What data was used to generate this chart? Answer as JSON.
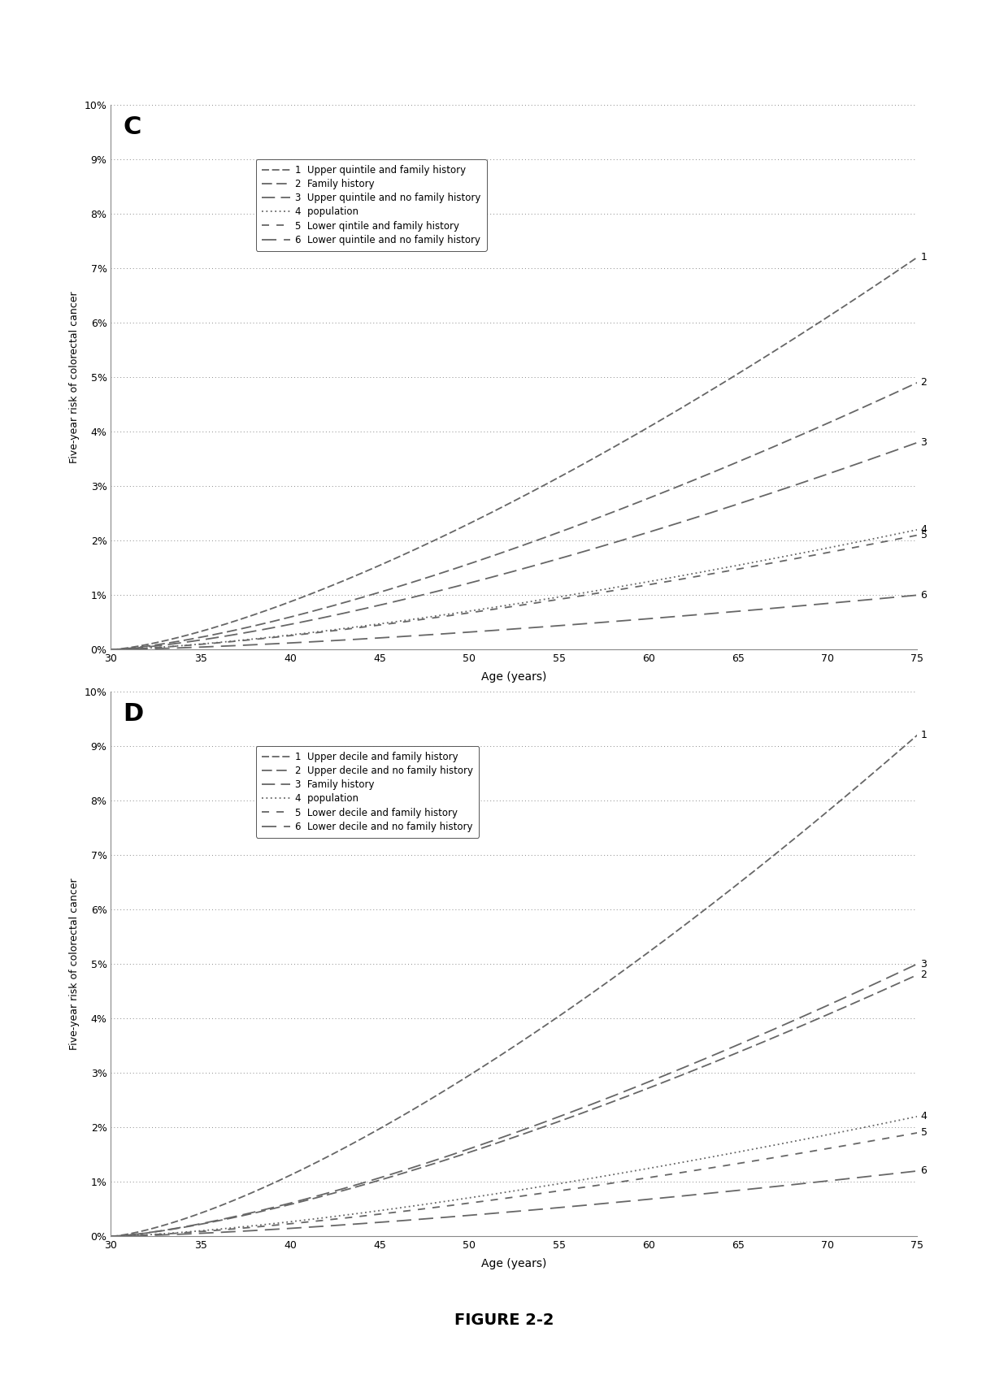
{
  "panel_C": {
    "label": "C",
    "ylabel": "Five-year risk of colorectal cancer",
    "xlabel": "Age (years)",
    "xlim": [
      30,
      75
    ],
    "ylim": [
      0,
      0.1
    ],
    "yticks": [
      0,
      0.01,
      0.02,
      0.03,
      0.04,
      0.05,
      0.06,
      0.07,
      0.08,
      0.09,
      0.1
    ],
    "xticks": [
      30,
      35,
      40,
      45,
      50,
      55,
      60,
      65,
      70,
      75
    ],
    "legend_entries": [
      {
        "num": "1",
        "style": "s1",
        "label": "Upper quintile and family history"
      },
      {
        "num": "2",
        "style": "s2",
        "label": "Family history"
      },
      {
        "num": "3",
        "style": "s3",
        "label": "Upper quintile and no family history"
      },
      {
        "num": "4",
        "style": "s4",
        "label": "population"
      },
      {
        "num": "5",
        "style": "s5",
        "label": "Lower qintile and family history"
      },
      {
        "num": "6",
        "style": "s6",
        "label": "Lower quintile and no family history"
      }
    ],
    "lines": [
      {
        "id": 1,
        "y_at_75": 0.072,
        "exponent": 1.4
      },
      {
        "id": 2,
        "y_at_75": 0.049,
        "exponent": 1.4
      },
      {
        "id": 3,
        "y_at_75": 0.038,
        "exponent": 1.4
      },
      {
        "id": 4,
        "y_at_75": 0.022,
        "exponent": 1.4
      },
      {
        "id": 5,
        "y_at_75": 0.021,
        "exponent": 1.4
      },
      {
        "id": 6,
        "y_at_75": 0.01,
        "exponent": 1.4
      }
    ]
  },
  "panel_D": {
    "label": "D",
    "ylabel": "Five-year risk of colorectal cancer",
    "xlabel": "Age (years)",
    "xlim": [
      30,
      75
    ],
    "ylim": [
      0,
      0.1
    ],
    "yticks": [
      0,
      0.01,
      0.02,
      0.03,
      0.04,
      0.05,
      0.06,
      0.07,
      0.08,
      0.09,
      0.1
    ],
    "xticks": [
      30,
      35,
      40,
      45,
      50,
      55,
      60,
      65,
      70,
      75
    ],
    "legend_entries": [
      {
        "num": "1",
        "style": "s1",
        "label": "Upper decile and family history"
      },
      {
        "num": "2",
        "style": "s2",
        "label": "Upper decile and no family history"
      },
      {
        "num": "3",
        "style": "s3",
        "label": "Family history"
      },
      {
        "num": "4",
        "style": "s4",
        "label": "population"
      },
      {
        "num": "5",
        "style": "s5",
        "label": "Lower decile and family history"
      },
      {
        "num": "6",
        "style": "s6",
        "label": "Lower decile and no family history"
      }
    ],
    "lines": [
      {
        "id": 1,
        "y_at_75": 0.092,
        "exponent": 1.4
      },
      {
        "id": 2,
        "y_at_75": 0.048,
        "exponent": 1.4
      },
      {
        "id": 3,
        "y_at_75": 0.05,
        "exponent": 1.4
      },
      {
        "id": 4,
        "y_at_75": 0.022,
        "exponent": 1.4
      },
      {
        "id": 5,
        "y_at_75": 0.019,
        "exponent": 1.4
      },
      {
        "id": 6,
        "y_at_75": 0.012,
        "exponent": 1.4
      }
    ]
  },
  "figure_title": "FIGURE 2-2",
  "line_color": "#666666",
  "styles": {
    "s1": {
      "dash": [
        5,
        2
      ],
      "lw": 1.3
    },
    "s2": {
      "dash": [
        7,
        3
      ],
      "lw": 1.3
    },
    "s3": {
      "dash": [
        9,
        4
      ],
      "lw": 1.3
    },
    "s4": {
      "dot": true,
      "dash": [
        1,
        2
      ],
      "lw": 1.3
    },
    "s5": {
      "dash": [
        5,
        5
      ],
      "lw": 1.3
    },
    "s6": {
      "dash": [
        10,
        5
      ],
      "lw": 1.3
    }
  }
}
